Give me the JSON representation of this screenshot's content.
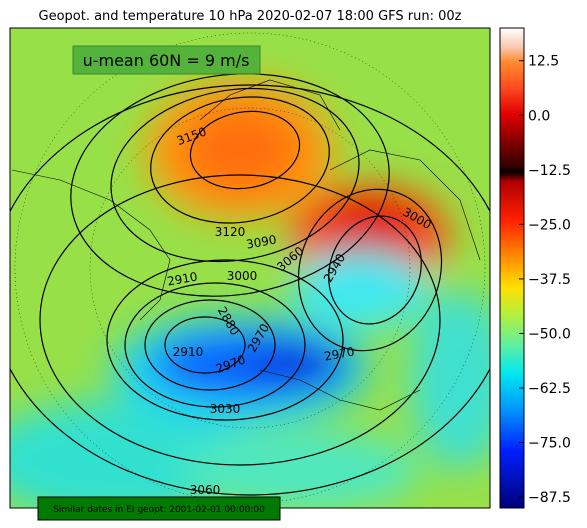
{
  "title": "Geopot. and temperature 10 hPa 2020-02-07 18:00 GFS run: 00z",
  "annotation": "u-mean 60N = 9 m/s",
  "footer": "Similar dates in EI geopt: 2001-02-01 00:00:00",
  "colorbar": {
    "lim": [
      -90,
      20
    ],
    "ticks": [
      12.5,
      {
        "value": 0,
        "label": "0.0"
      },
      {
        "value": -12.5,
        "label": "−12.5"
      },
      {
        "value": -25,
        "label": "−25.0"
      },
      {
        "value": -37.5,
        "label": "−37.5"
      },
      {
        "value": -50,
        "label": "−50.0"
      },
      {
        "value": -62.5,
        "label": "−62.5"
      },
      {
        "value": -75,
        "label": "−75.0"
      },
      {
        "value": -87.5,
        "label": "−87.5"
      }
    ]
  },
  "contour_labels": [
    3150,
    3120,
    3090,
    3060,
    3000,
    3000,
    2940,
    2910,
    2880,
    2910,
    2970,
    2970,
    2970,
    3030,
    3060
  ]
}
